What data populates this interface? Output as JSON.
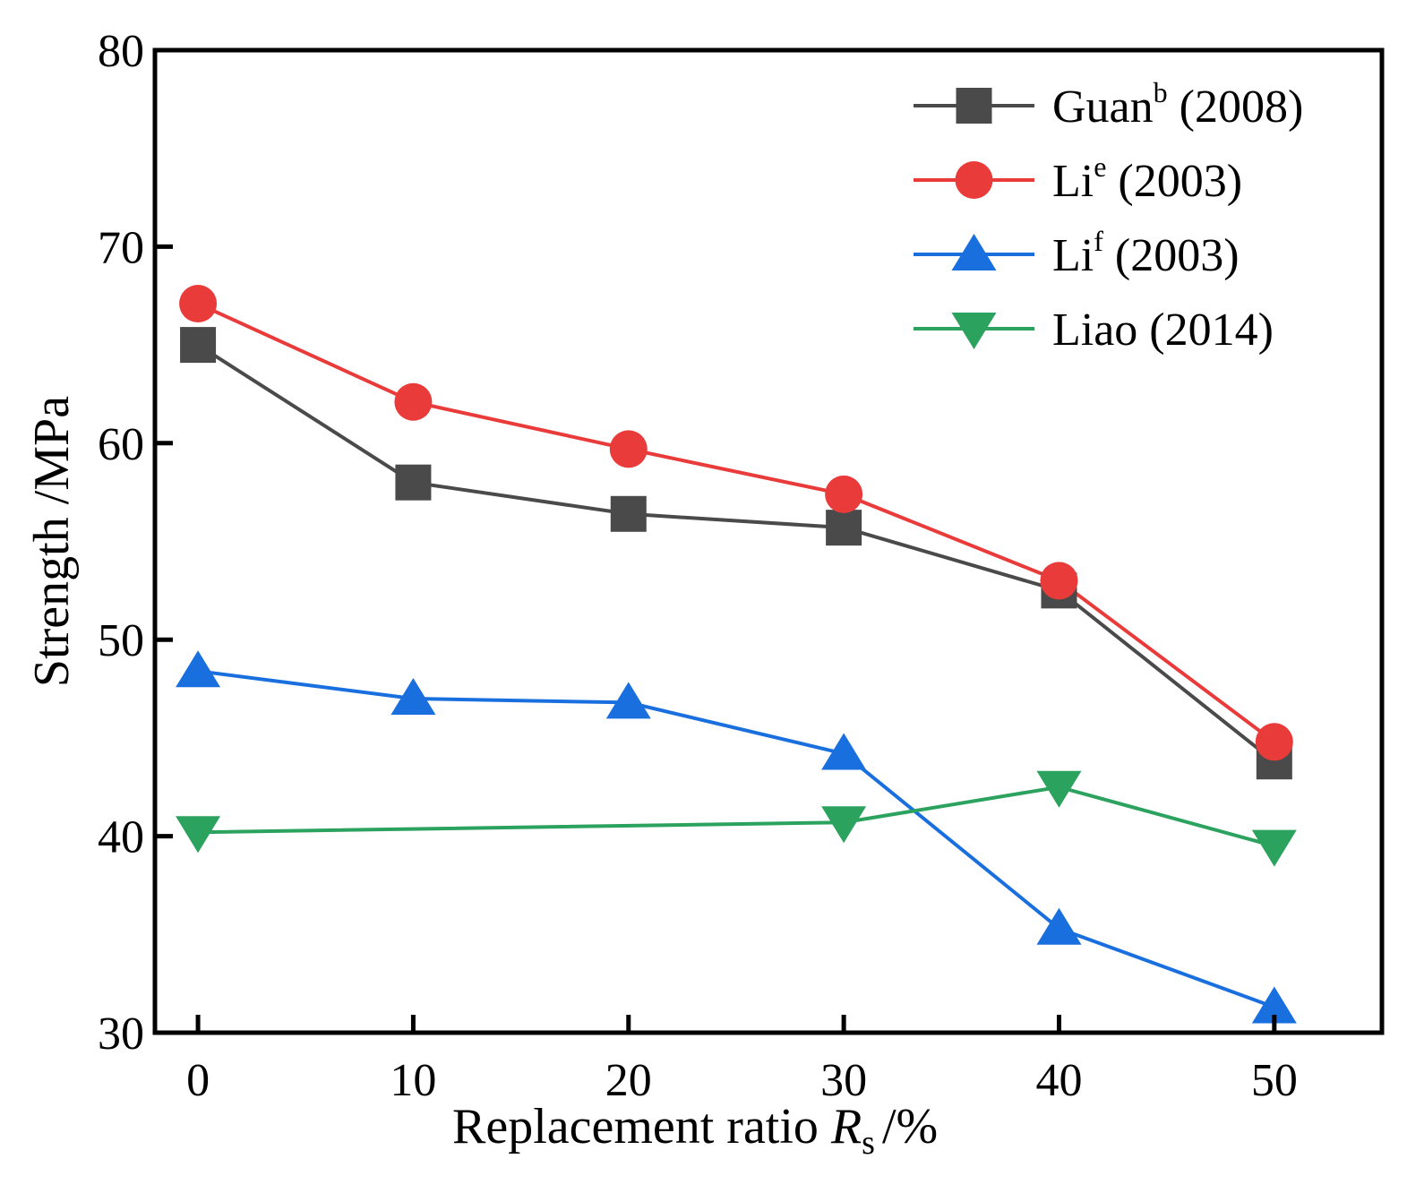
{
  "chart_data": {
    "type": "line",
    "title": "",
    "xlabel": "Replacement ratio",
    "xlabel_symbol": "R",
    "xlabel_subscript": "s",
    "xlabel_unit": "/%",
    "ylabel": "Strength /MPa",
    "xlim": [
      -2,
      55
    ],
    "ylim": [
      30,
      80
    ],
    "xticks": [
      0,
      10,
      20,
      30,
      40,
      50
    ],
    "yticks": [
      30,
      40,
      50,
      60,
      70,
      80
    ],
    "grid": false,
    "legend_position": "top-right",
    "series": [
      {
        "name": "Guan",
        "superscript": "b",
        "suffix": " (2008)",
        "marker": "square",
        "color": "#4a4a4a",
        "x": [
          0,
          10,
          20,
          30,
          40,
          50
        ],
        "y": [
          65.0,
          58.0,
          56.4,
          55.7,
          52.5,
          43.8
        ]
      },
      {
        "name": "Li",
        "superscript": "e",
        "suffix": " (2003)",
        "marker": "circle",
        "color": "#ea3b3b",
        "x": [
          0,
          10,
          20,
          30,
          40,
          50
        ],
        "y": [
          67.1,
          62.1,
          59.7,
          57.4,
          53.0,
          44.8
        ]
      },
      {
        "name": "Li",
        "superscript": "f",
        "suffix": " (2003)",
        "marker": "triangle-up",
        "color": "#1a6fdf",
        "x": [
          0,
          10,
          20,
          30,
          40,
          50
        ],
        "y": [
          48.4,
          47.0,
          46.8,
          44.2,
          35.3,
          31.3
        ]
      },
      {
        "name": "Liao",
        "superscript": "",
        "suffix": " (2014)",
        "marker": "triangle-down",
        "color": "#2ca25f",
        "x": [
          0,
          30,
          40,
          50
        ],
        "y": [
          40.2,
          40.7,
          42.5,
          39.5
        ]
      }
    ]
  }
}
